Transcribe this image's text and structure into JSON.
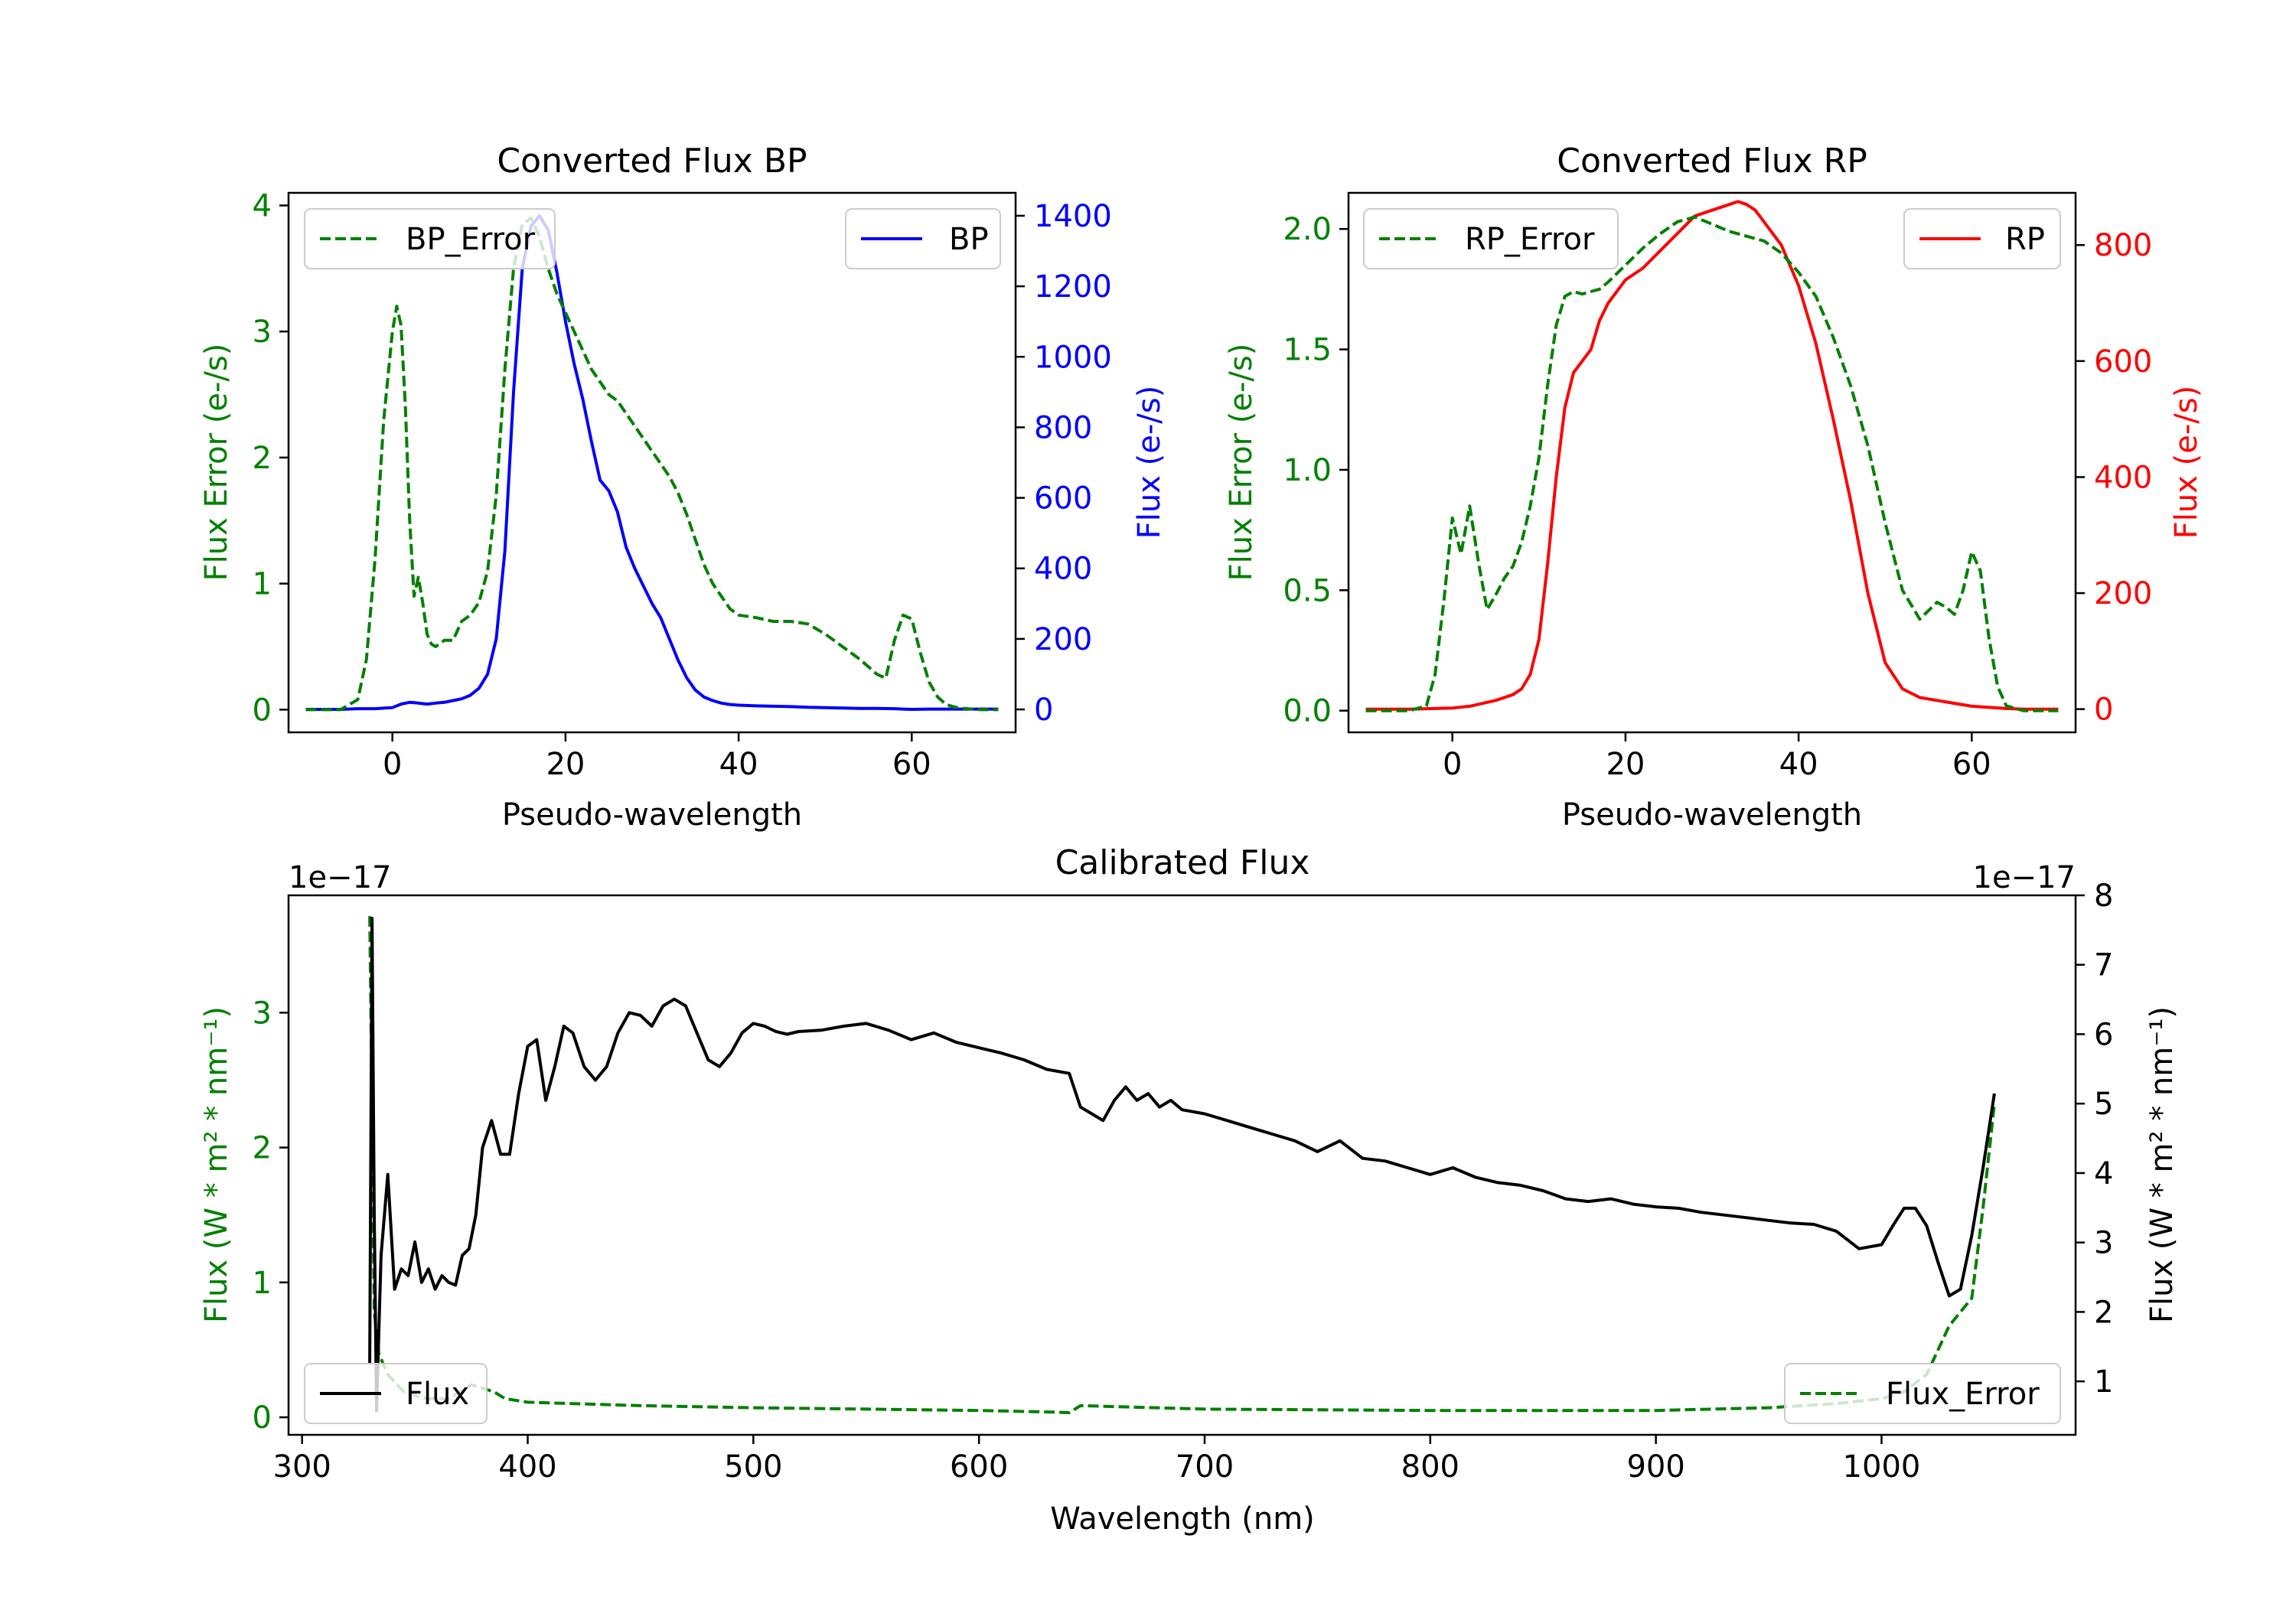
{
  "chart_data": [
    {
      "id": "bp",
      "type": "line",
      "title": "Converted Flux BP",
      "xlabel": "Pseudo-wavelength",
      "ylabel_left": "Flux Error (e-/s)",
      "ylabel_right": "Flux (e-/s)",
      "xlim": [
        -12,
        72
      ],
      "ylim_left": [
        -0.18,
        4.1
      ],
      "ylim_right": [
        -65,
        1465
      ],
      "xticks": [
        0,
        20,
        40,
        60
      ],
      "yticks_left": [
        0,
        1,
        2,
        3,
        4
      ],
      "yticks_right": [
        0,
        200,
        400,
        600,
        800,
        1000,
        1200,
        1400
      ],
      "left_color": "#008000",
      "right_color": "#0000ff",
      "legend_left": {
        "label": "BP_Error",
        "placement": "upper left"
      },
      "legend_right": {
        "label": "BP",
        "placement": "upper right"
      },
      "series": [
        {
          "name": "BP_Error",
          "axis": "left",
          "style": "dashed",
          "color": "#008000",
          "x": [
            -10,
            -6,
            -4,
            -3,
            -2,
            -1,
            0,
            0.5,
            1,
            1.5,
            2,
            2.5,
            3,
            3.5,
            4,
            4.5,
            5,
            6,
            7,
            8,
            9,
            10,
            11,
            12,
            13,
            14,
            15,
            16,
            17,
            18,
            19,
            20,
            21,
            22,
            23,
            24,
            25,
            26,
            27,
            28,
            29,
            30,
            31,
            32,
            33,
            34,
            35,
            36,
            37,
            38,
            39,
            40,
            42,
            44,
            46,
            48,
            50,
            52,
            54,
            56,
            57,
            58,
            59,
            60,
            61,
            62,
            63,
            64,
            65,
            66,
            68,
            70
          ],
          "values": [
            0,
            0,
            0.08,
            0.4,
            1.2,
            2.3,
            3.0,
            3.2,
            3.05,
            2.4,
            1.5,
            0.9,
            1.05,
            0.85,
            0.6,
            0.52,
            0.5,
            0.55,
            0.55,
            0.7,
            0.75,
            0.85,
            1.1,
            1.7,
            2.7,
            3.5,
            3.85,
            3.9,
            3.75,
            3.5,
            3.3,
            3.15,
            3.0,
            2.85,
            2.7,
            2.6,
            2.5,
            2.45,
            2.35,
            2.25,
            2.15,
            2.05,
            1.95,
            1.85,
            1.72,
            1.55,
            1.35,
            1.15,
            1.0,
            0.9,
            0.8,
            0.75,
            0.73,
            0.7,
            0.7,
            0.68,
            0.6,
            0.5,
            0.4,
            0.28,
            0.25,
            0.55,
            0.75,
            0.72,
            0.45,
            0.22,
            0.1,
            0.04,
            0.02,
            0.01,
            0,
            0
          ]
        },
        {
          "name": "BP",
          "axis": "right",
          "style": "solid",
          "color": "#0000ff",
          "x": [
            -10,
            -6,
            -4,
            -2,
            0,
            1,
            2,
            3,
            4,
            5,
            6,
            7,
            8,
            9,
            10,
            11,
            12,
            13,
            14,
            15,
            16,
            17,
            18,
            19,
            20,
            21,
            22,
            23,
            24,
            25,
            26,
            27,
            28,
            29,
            30,
            31,
            32,
            33,
            34,
            35,
            36,
            37,
            38,
            39,
            40,
            42,
            44,
            46,
            48,
            50,
            52,
            54,
            56,
            58,
            59,
            60,
            62,
            64,
            66,
            68,
            70
          ],
          "values": [
            0,
            0,
            2,
            2,
            5,
            15,
            20,
            18,
            15,
            18,
            20,
            25,
            30,
            40,
            60,
            100,
            200,
            450,
            900,
            1250,
            1370,
            1400,
            1360,
            1240,
            1100,
            980,
            880,
            760,
            650,
            620,
            560,
            460,
            400,
            350,
            300,
            260,
            200,
            140,
            90,
            55,
            35,
            25,
            18,
            14,
            12,
            10,
            9,
            8,
            6,
            5,
            4,
            3,
            3,
            2,
            1,
            0,
            1,
            1,
            1,
            1,
            1
          ]
        }
      ]
    },
    {
      "id": "rp",
      "type": "line",
      "title": "Converted Flux RP",
      "xlabel": "Pseudo-wavelength",
      "ylabel_left": "Flux Error (e-/s)",
      "ylabel_right": "Flux (e-/s)",
      "xlim": [
        -12,
        72
      ],
      "ylim_left": [
        -0.09,
        2.15
      ],
      "ylim_right": [
        -40,
        890
      ],
      "xticks": [
        0,
        20,
        40,
        60
      ],
      "yticks_left": [
        0.0,
        0.5,
        1.0,
        1.5,
        2.0
      ],
      "ytick_labels_left": [
        "0.0",
        "0.5",
        "1.0",
        "1.5",
        "2.0"
      ],
      "yticks_right": [
        0,
        200,
        400,
        600,
        800
      ],
      "left_color": "#008000",
      "right_color": "#ff0000",
      "legend_left": {
        "label": "RP_Error",
        "placement": "upper left"
      },
      "legend_right": {
        "label": "RP",
        "placement": "upper right"
      },
      "series": [
        {
          "name": "RP_Error",
          "axis": "left",
          "style": "dashed",
          "color": "#008000",
          "x": [
            -10,
            -5,
            -3,
            -2,
            -1,
            0,
            1,
            2,
            3,
            4,
            5,
            6,
            7,
            8,
            9,
            10,
            11,
            12,
            13,
            14,
            15,
            16,
            17,
            18,
            20,
            22,
            24,
            26,
            28,
            30,
            32,
            34,
            36,
            38,
            40,
            42,
            44,
            46,
            48,
            50,
            52,
            54,
            56,
            57,
            58,
            59,
            60,
            61,
            62,
            63,
            64,
            66,
            68,
            70
          ],
          "values": [
            0,
            0,
            0.02,
            0.15,
            0.45,
            0.8,
            0.65,
            0.85,
            0.62,
            0.42,
            0.48,
            0.55,
            0.6,
            0.7,
            0.85,
            1.05,
            1.35,
            1.6,
            1.72,
            1.74,
            1.73,
            1.74,
            1.75,
            1.78,
            1.85,
            1.92,
            1.98,
            2.03,
            2.05,
            2.02,
            1.99,
            1.97,
            1.95,
            1.9,
            1.82,
            1.72,
            1.55,
            1.35,
            1.1,
            0.78,
            0.5,
            0.38,
            0.45,
            0.43,
            0.4,
            0.5,
            0.66,
            0.58,
            0.3,
            0.1,
            0.02,
            0,
            0,
            0
          ]
        },
        {
          "name": "RP",
          "axis": "right",
          "style": "solid",
          "color": "#ff0000",
          "x": [
            -10,
            -5,
            0,
            2,
            5,
            7,
            8,
            9,
            10,
            11,
            12,
            13,
            14,
            15,
            16,
            17,
            18,
            20,
            22,
            24,
            26,
            28,
            30,
            32,
            33,
            34,
            35,
            36,
            38,
            40,
            42,
            44,
            46,
            48,
            50,
            52,
            54,
            56,
            58,
            60,
            62,
            64,
            66,
            68,
            70
          ],
          "values": [
            0,
            0,
            2,
            5,
            15,
            25,
            35,
            60,
            120,
            250,
            400,
            520,
            580,
            600,
            620,
            670,
            700,
            740,
            760,
            790,
            820,
            850,
            860,
            870,
            875,
            870,
            860,
            840,
            800,
            730,
            630,
            500,
            360,
            200,
            80,
            35,
            20,
            15,
            10,
            5,
            3,
            1,
            0,
            0,
            0
          ]
        }
      ]
    },
    {
      "id": "calibrated",
      "type": "line",
      "title": "Calibrated Flux",
      "xlabel": "Wavelength (nm)",
      "ylabel_left": "Flux (W * m² * nm⁻¹)",
      "ylabel_right": "Flux (W * m² * nm⁻¹)",
      "left_offset_text": "1e−17",
      "right_offset_text": "1e−17",
      "xlim": [
        294,
        1086
      ],
      "ylim_left": [
        -0.13,
        3.87
      ],
      "ylim_right": [
        0.23,
        8.0
      ],
      "xticks": [
        300,
        400,
        500,
        600,
        700,
        800,
        900,
        1000
      ],
      "yticks_left": [
        0,
        1,
        2,
        3
      ],
      "yticks_right": [
        1,
        2,
        3,
        4,
        5,
        6,
        7,
        8
      ],
      "left_color": "#008000",
      "right_color": "#000000",
      "legend_left": {
        "label": "Flux",
        "placement": "lower left"
      },
      "legend_right": {
        "label": "Flux_Error",
        "placement": "lower right"
      },
      "series": [
        {
          "name": "Flux",
          "axis": "left",
          "style": "solid",
          "color": "#000000",
          "x": [
            330,
            331,
            332,
            333,
            335,
            338,
            341,
            344,
            347,
            350,
            353,
            356,
            359,
            362,
            365,
            368,
            371,
            374,
            377,
            380,
            384,
            388,
            392,
            396,
            400,
            404,
            408,
            412,
            416,
            420,
            425,
            430,
            435,
            440,
            445,
            450,
            455,
            460,
            465,
            470,
            475,
            480,
            485,
            490,
            495,
            500,
            505,
            510,
            515,
            520,
            530,
            540,
            550,
            560,
            570,
            580,
            590,
            600,
            610,
            620,
            630,
            640,
            645,
            650,
            655,
            660,
            665,
            670,
            675,
            680,
            685,
            690,
            700,
            710,
            720,
            730,
            740,
            750,
            760,
            770,
            780,
            790,
            800,
            810,
            820,
            830,
            840,
            850,
            860,
            870,
            880,
            890,
            900,
            910,
            920,
            930,
            940,
            950,
            960,
            970,
            980,
            990,
            1000,
            1005,
            1010,
            1015,
            1020,
            1025,
            1030,
            1035,
            1040,
            1045,
            1050
          ],
          "values": [
            0.4,
            3.7,
            1.5,
            0.05,
            1.2,
            1.8,
            0.95,
            1.1,
            1.05,
            1.3,
            1.0,
            1.1,
            0.95,
            1.05,
            1.0,
            0.98,
            1.2,
            1.25,
            1.5,
            2.0,
            2.2,
            1.95,
            1.95,
            2.4,
            2.75,
            2.8,
            2.35,
            2.6,
            2.9,
            2.85,
            2.6,
            2.5,
            2.6,
            2.85,
            3.0,
            2.98,
            2.9,
            3.05,
            3.1,
            3.05,
            2.85,
            2.65,
            2.6,
            2.7,
            2.85,
            2.92,
            2.9,
            2.86,
            2.84,
            2.86,
            2.87,
            2.9,
            2.92,
            2.87,
            2.8,
            2.85,
            2.78,
            2.74,
            2.7,
            2.65,
            2.58,
            2.55,
            2.3,
            2.25,
            2.2,
            2.35,
            2.45,
            2.35,
            2.4,
            2.3,
            2.35,
            2.28,
            2.25,
            2.2,
            2.15,
            2.1,
            2.05,
            1.97,
            2.05,
            1.92,
            1.9,
            1.85,
            1.8,
            1.85,
            1.78,
            1.74,
            1.72,
            1.68,
            1.62,
            1.6,
            1.62,
            1.58,
            1.56,
            1.55,
            1.52,
            1.5,
            1.48,
            1.46,
            1.44,
            1.43,
            1.38,
            1.25,
            1.28,
            1.42,
            1.55,
            1.55,
            1.42,
            1.15,
            0.9,
            0.95,
            1.35,
            1.85,
            2.4
          ]
        },
        {
          "name": "Flux_Error",
          "axis": "right",
          "style": "dashed",
          "color": "#008000",
          "x": [
            330,
            331,
            332,
            334,
            338,
            345,
            355,
            365,
            375,
            380,
            385,
            390,
            400,
            420,
            450,
            500,
            550,
            600,
            630,
            640,
            645,
            700,
            800,
            900,
            950,
            980,
            1000,
            1010,
            1020,
            1030,
            1040,
            1045,
            1050
          ],
          "values": [
            7.7,
            5.0,
            2.0,
            1.4,
            1.1,
            0.85,
            0.75,
            0.75,
            0.95,
            0.9,
            0.85,
            0.75,
            0.7,
            0.68,
            0.65,
            0.62,
            0.6,
            0.58,
            0.56,
            0.55,
            0.65,
            0.6,
            0.58,
            0.58,
            0.62,
            0.68,
            0.75,
            0.85,
            1.1,
            1.8,
            2.2,
            3.5,
            5.0
          ]
        }
      ]
    }
  ]
}
